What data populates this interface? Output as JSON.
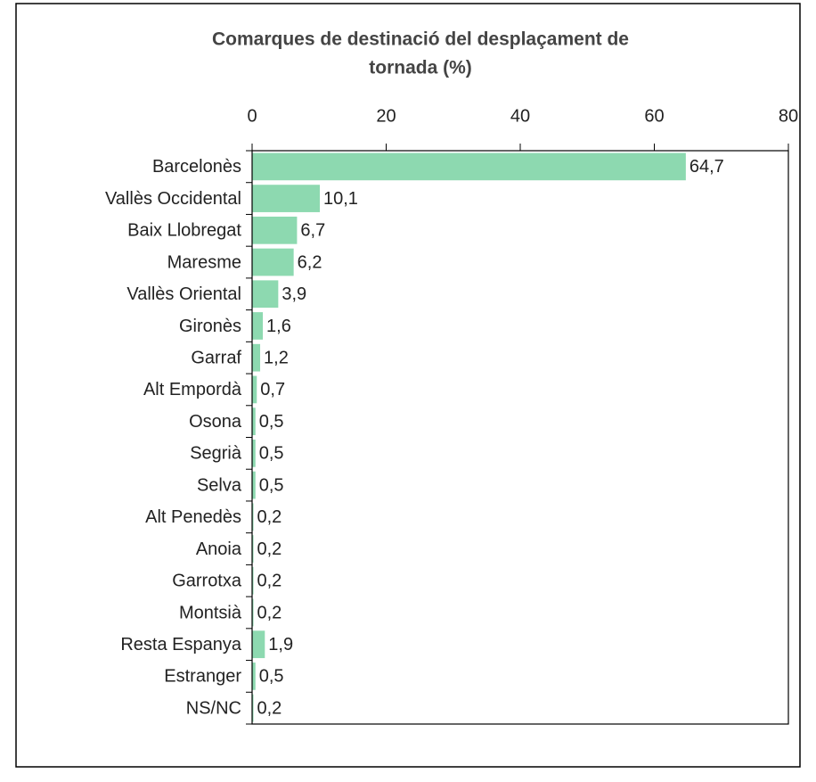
{
  "chart_data": {
    "type": "bar",
    "orientation": "horizontal",
    "title": [
      "Comarques de destinació del desplaçament de",
      "tornada (%)"
    ],
    "categories": [
      "Barcelonès",
      "Vallès Occidental",
      "Baix Llobregat",
      "Maresme",
      "Vallès Oriental",
      "Gironès",
      "Garraf",
      "Alt Empordà",
      "Osona",
      "Segrià",
      "Selva",
      "Alt Penedès",
      "Anoia",
      "Garrotxa",
      "Montsià",
      "Resta Espanya",
      "Estranger",
      "NS/NC"
    ],
    "values": [
      64.7,
      10.1,
      6.7,
      6.2,
      3.9,
      1.6,
      1.2,
      0.7,
      0.5,
      0.5,
      0.5,
      0.2,
      0.2,
      0.2,
      0.2,
      1.9,
      0.5,
      0.2
    ],
    "value_labels": [
      "64,7",
      "10,1",
      "6,7",
      "6,2",
      "3,9",
      "1,6",
      "1,2",
      "0,7",
      "0,5",
      "0,5",
      "0,5",
      "0,2",
      "0,2",
      "0,2",
      "0,2",
      "1,9",
      "0,5",
      "0,2"
    ],
    "color": "#8dd9b0",
    "xlim": [
      0,
      80
    ],
    "xticks": [
      0,
      20,
      40,
      60,
      80
    ],
    "grid": false
  }
}
